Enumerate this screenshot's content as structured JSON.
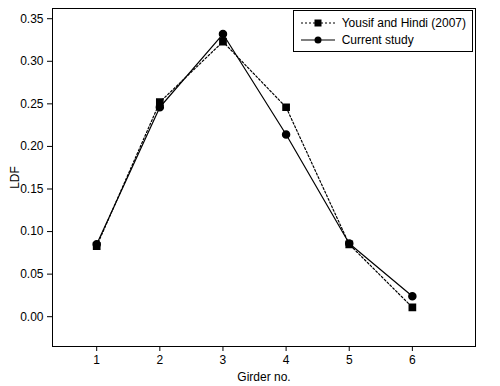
{
  "chart_data": {
    "type": "line",
    "x_label": "Girder no.",
    "y_label": "LDF",
    "x": [
      1,
      2,
      3,
      4,
      5,
      6
    ],
    "series": [
      {
        "name": "Yousif and Hindi (2007)",
        "color": "#000000",
        "marker": "square",
        "line_style": "dotted",
        "values": [
          0.083,
          0.252,
          0.323,
          0.246,
          0.085,
          0.011
        ]
      },
      {
        "name": "Current study",
        "color": "#000000",
        "marker": "circle",
        "line_style": "solid",
        "values": [
          0.085,
          0.246,
          0.332,
          0.214,
          0.086,
          0.024
        ]
      }
    ],
    "xlim": [
      0.3,
      7.0
    ],
    "xticks": [
      1,
      2,
      3,
      4,
      5,
      6
    ],
    "ylim": [
      -0.035,
      0.362
    ],
    "yticks": [
      {
        "value": 0,
        "label": "0.00"
      },
      {
        "value": 0.05,
        "label": "0.05"
      },
      {
        "value": 0.1,
        "label": "0.10"
      },
      {
        "value": 0.15,
        "label": "0.15"
      },
      {
        "value": 0.2,
        "label": "0.20"
      },
      {
        "value": 0.25,
        "label": "0.25"
      },
      {
        "value": 0.3,
        "label": "0.30"
      },
      {
        "value": 0.35,
        "label": "0.35"
      }
    ],
    "legend": "upper right"
  }
}
